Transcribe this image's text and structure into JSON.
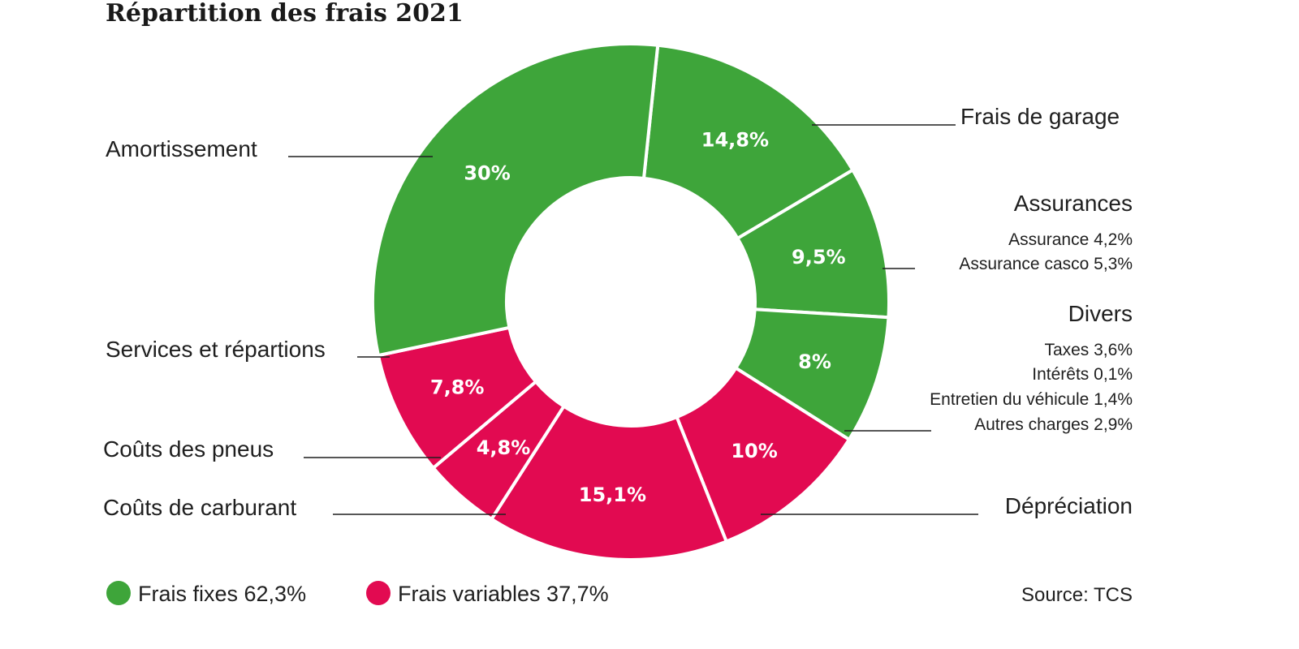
{
  "chart_data": {
    "type": "pie",
    "title": "Répartition des frais 2021",
    "unit": "%",
    "groups": [
      {
        "key": "fixes",
        "label": "Frais fixes 62,3%",
        "value": 62.3,
        "color": "#3ea53a"
      },
      {
        "key": "variables",
        "label": "Frais variables 37,7%",
        "value": 37.7,
        "color": "#e20a51"
      }
    ],
    "slices": [
      {
        "category": "Frais de garage",
        "value": 14.8,
        "value_label": "14,8%",
        "group": "fixes"
      },
      {
        "category": "Assurances",
        "value": 9.5,
        "value_label": "9,5%",
        "group": "fixes",
        "details": [
          "Assurance 4,2%",
          "Assurance casco 5,3%"
        ]
      },
      {
        "category": "Divers",
        "value": 8,
        "value_label": "8%",
        "group": "fixes",
        "details": [
          "Taxes 3,6%",
          "Intérêts 0,1%",
          "Entretien du véhicule 1,4%",
          "Autres charges 2,9%"
        ]
      },
      {
        "category": "Dépréciation",
        "value": 10,
        "value_label": "10%",
        "group": "variables"
      },
      {
        "category": "Coûts de carburant",
        "value": 15.1,
        "value_label": "15,1%",
        "group": "variables"
      },
      {
        "category": "Coûts des pneus",
        "value": 4.8,
        "value_label": "4,8%",
        "group": "variables"
      },
      {
        "category": "Services et répartions",
        "value": 7.8,
        "value_label": "7,8%",
        "group": "variables"
      },
      {
        "category": "Amortissement",
        "value": 30,
        "value_label": "30%",
        "group": "fixes"
      }
    ],
    "source": "Source: TCS"
  }
}
